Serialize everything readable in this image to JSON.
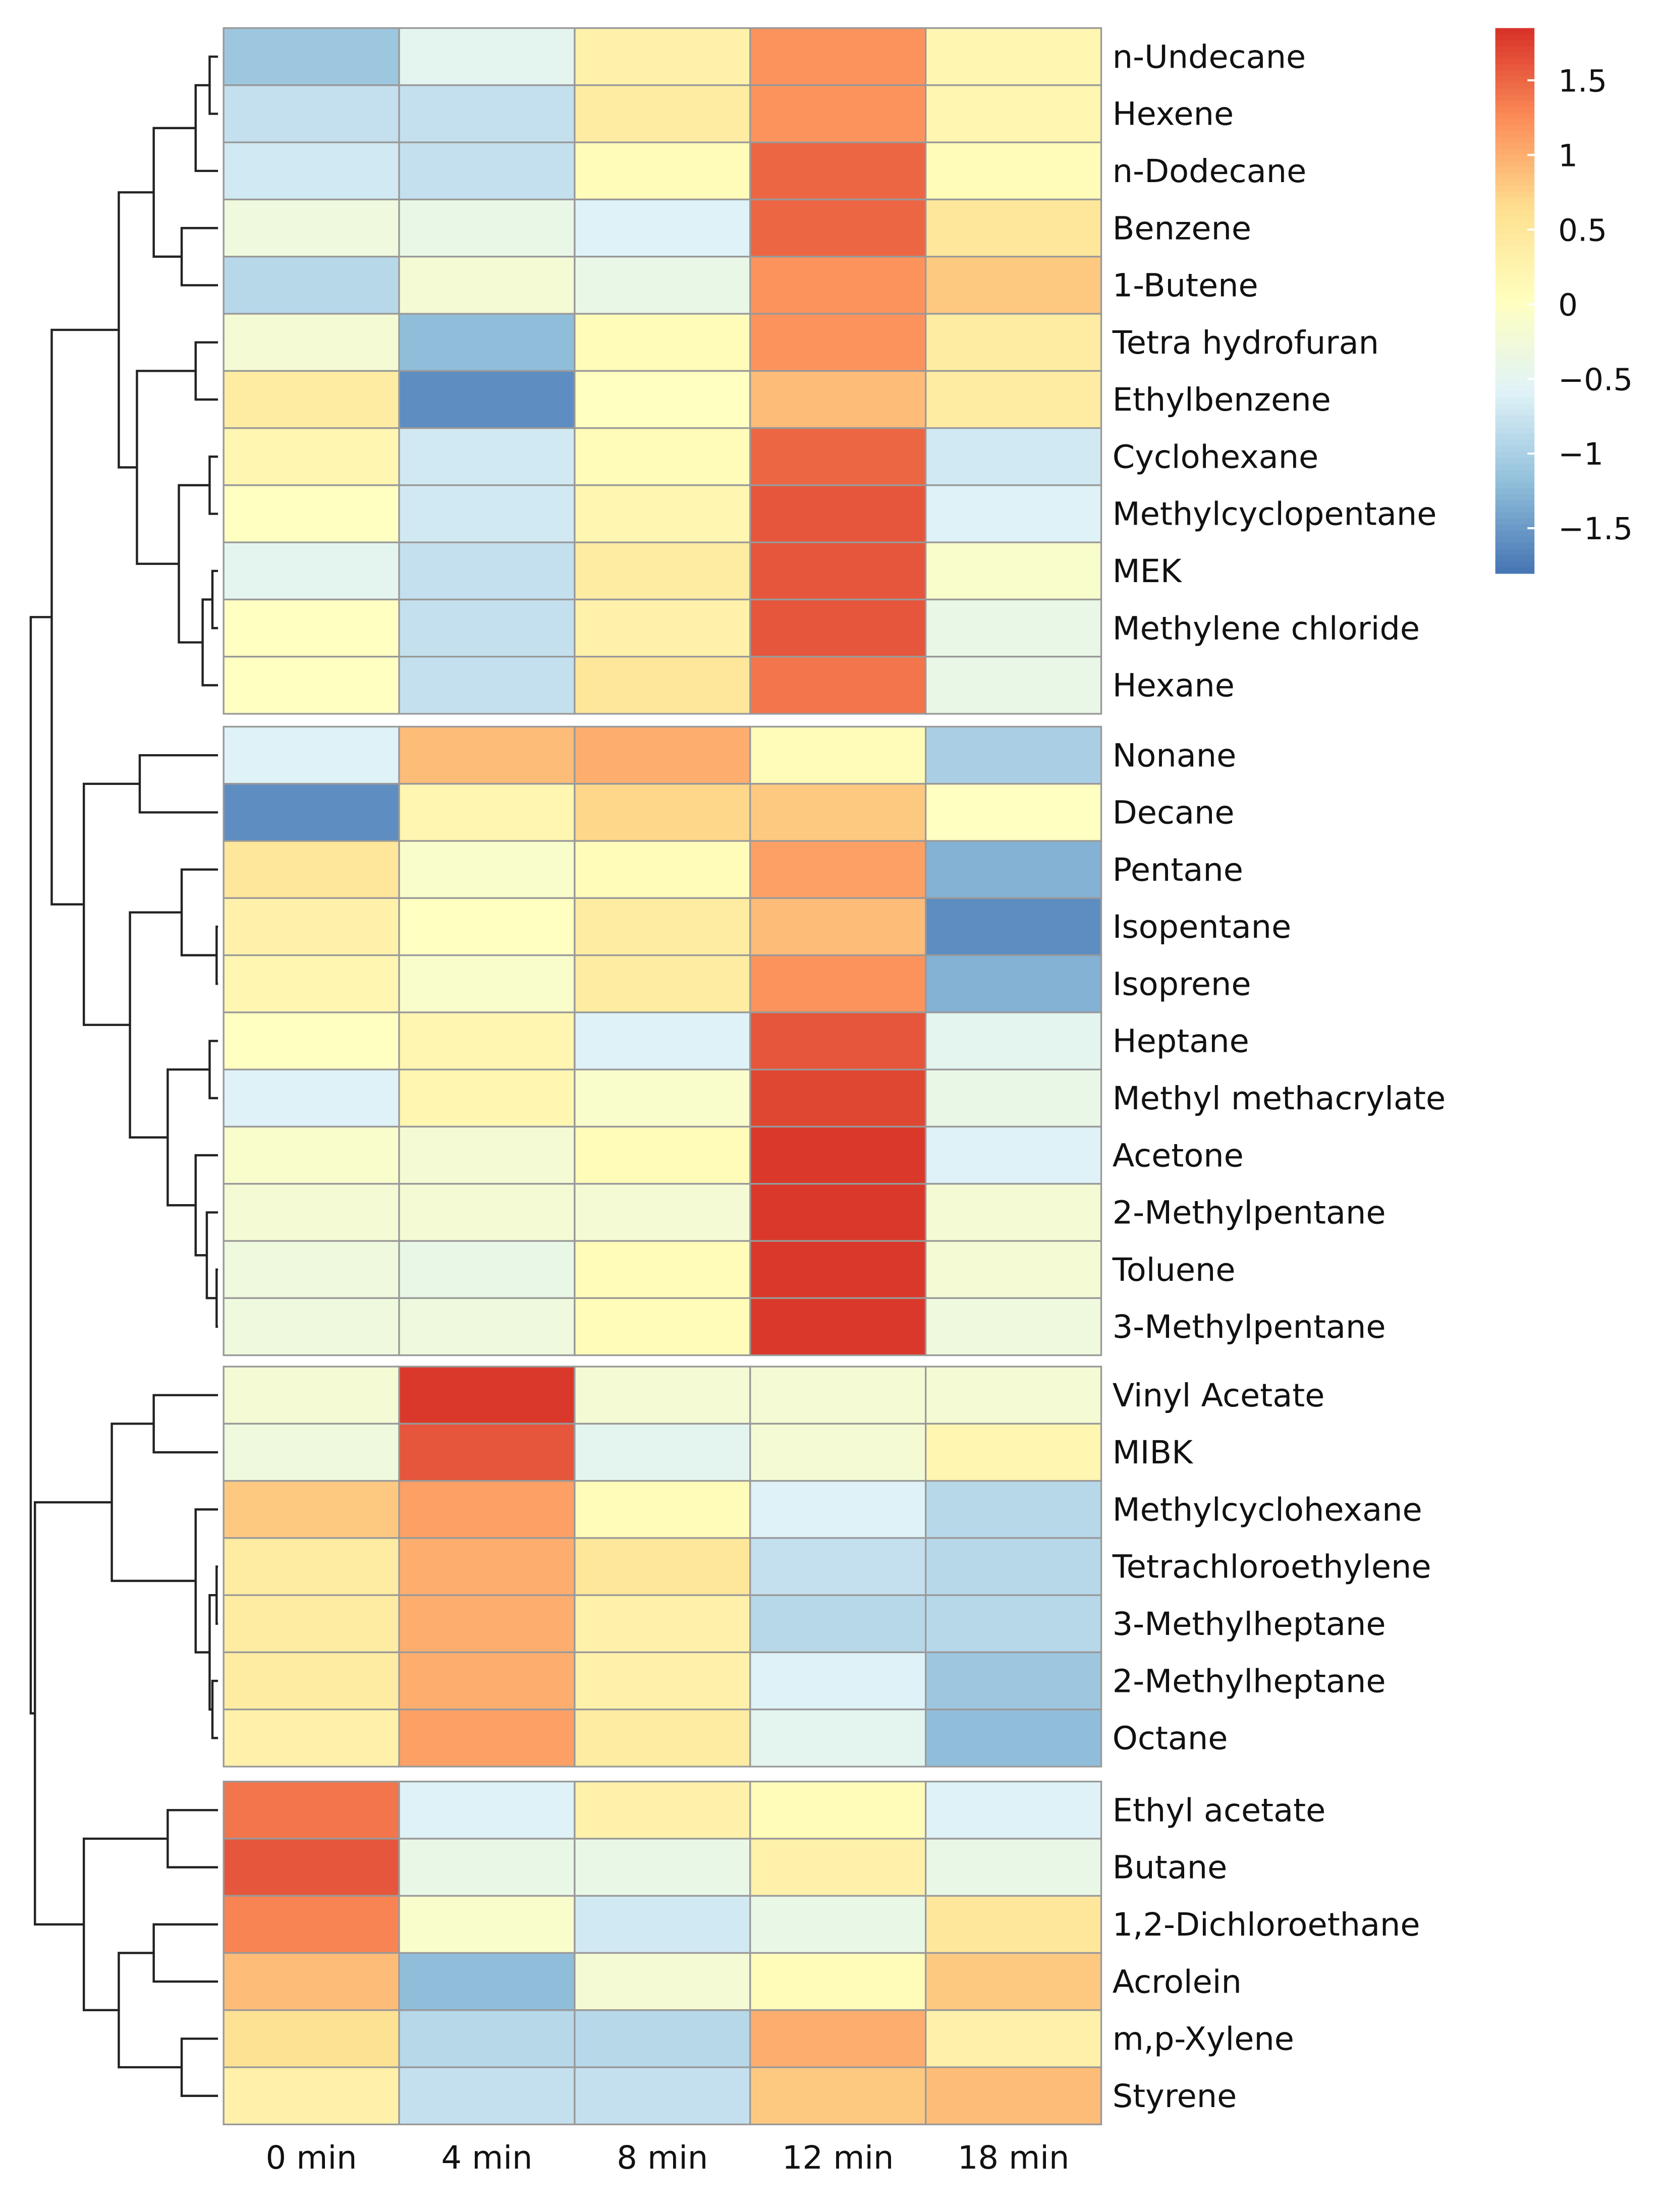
{
  "chart_data": {
    "type": "heatmap",
    "title": "",
    "columns": [
      "0 min",
      "4 min",
      "8 min",
      "12 min",
      "18 min"
    ],
    "row_groups": [
      [
        "n-Undecane",
        "Hexene",
        "n-Dodecane",
        "Benzene",
        "1-Butene",
        "Tetra hydrofuran",
        "Ethylbenzene",
        "Cyclohexane",
        "Methylcyclopentane",
        "MEK",
        "Methylene chloride",
        "Hexane"
      ],
      [
        "Nonane",
        "Decane",
        "Pentane",
        "Isopentane",
        "Isoprene",
        "Heptane",
        "Methyl methacrylate",
        "Acetone",
        "2-Methylpentane",
        "Toluene",
        "3-Methylpentane"
      ],
      [
        "Vinyl Acetate",
        "MIBK",
        "Methylcyclohexane",
        "Tetrachloroethylene",
        "3-Methylheptane",
        "2-Methylheptane",
        "Octane"
      ],
      [
        "Ethyl acetate",
        "Butane",
        "1,2-Dichloroethane",
        "Acrolein",
        "m,p-Xylene",
        "Styrene"
      ]
    ],
    "values": [
      [
        -1.1,
        -0.5,
        0.3,
        1.2,
        0.2
      ],
      [
        -0.8,
        -0.8,
        0.4,
        1.2,
        0.2
      ],
      [
        -0.7,
        -0.8,
        0.1,
        1.5,
        0.1
      ],
      [
        -0.3,
        -0.4,
        -0.6,
        1.5,
        0.5
      ],
      [
        -0.9,
        -0.2,
        -0.4,
        1.2,
        0.8
      ],
      [
        -0.2,
        -1.2,
        0.1,
        1.2,
        0.4
      ],
      [
        0.4,
        -1.6,
        0.0,
        0.9,
        0.4
      ],
      [
        0.2,
        -0.7,
        0.1,
        1.5,
        -0.7
      ],
      [
        0.0,
        -0.7,
        0.2,
        1.6,
        -0.6
      ],
      [
        -0.5,
        -0.8,
        0.4,
        1.6,
        -0.1
      ],
      [
        0.0,
        -0.8,
        0.3,
        1.6,
        -0.4
      ],
      [
        0.0,
        -0.8,
        0.5,
        1.4,
        -0.4
      ],
      [
        -0.6,
        0.9,
        1.0,
        0.1,
        -1.0
      ],
      [
        -1.6,
        0.2,
        0.7,
        0.8,
        0.0
      ],
      [
        0.5,
        -0.1,
        0.1,
        1.1,
        -1.3
      ],
      [
        0.3,
        0.0,
        0.4,
        0.9,
        -1.6
      ],
      [
        0.2,
        -0.1,
        0.4,
        1.2,
        -1.3
      ],
      [
        0.0,
        0.2,
        -0.6,
        1.6,
        -0.5
      ],
      [
        -0.6,
        0.2,
        -0.1,
        1.7,
        -0.4
      ],
      [
        -0.1,
        -0.2,
        0.1,
        1.8,
        -0.6
      ],
      [
        -0.2,
        -0.2,
        -0.2,
        1.8,
        -0.2
      ],
      [
        -0.3,
        -0.4,
        0.1,
        1.8,
        -0.2
      ],
      [
        -0.3,
        -0.3,
        0.1,
        1.8,
        -0.3
      ],
      [
        -0.2,
        1.8,
        -0.2,
        -0.2,
        -0.2
      ],
      [
        -0.3,
        1.6,
        -0.5,
        -0.2,
        0.2
      ],
      [
        0.8,
        1.1,
        0.1,
        -0.6,
        -0.9
      ],
      [
        0.4,
        1.0,
        0.5,
        -0.8,
        -0.9
      ],
      [
        0.4,
        1.0,
        0.3,
        -0.9,
        -0.9
      ],
      [
        0.4,
        1.0,
        0.3,
        -0.6,
        -1.1
      ],
      [
        0.3,
        1.1,
        0.4,
        -0.5,
        -1.2
      ],
      [
        1.4,
        -0.6,
        0.3,
        0.1,
        -0.6
      ],
      [
        1.6,
        -0.4,
        -0.4,
        0.3,
        -0.4
      ],
      [
        1.3,
        -0.1,
        -0.7,
        -0.4,
        0.5
      ],
      [
        0.9,
        -1.2,
        -0.2,
        0.1,
        0.8
      ],
      [
        0.6,
        -0.9,
        -0.9,
        1.0,
        0.3
      ],
      [
        0.3,
        -0.8,
        -0.8,
        0.8,
        0.9
      ]
    ],
    "colorbar": {
      "range": [
        -1.8,
        1.85
      ],
      "ticks": [
        1.5,
        1,
        0.5,
        0,
        -0.5,
        -1,
        -1.5
      ],
      "tick_labels": [
        "1.5",
        "1",
        "0.5",
        "0",
        "−0.5",
        "−1",
        "−1.5"
      ],
      "colors": [
        "#4575B4",
        "#91BFDB",
        "#E0F3F8",
        "#FFFFBF",
        "#FEE090",
        "#FC8D59",
        "#D73027"
      ]
    },
    "legend_position": "top-right",
    "dendrogram": "rows"
  }
}
